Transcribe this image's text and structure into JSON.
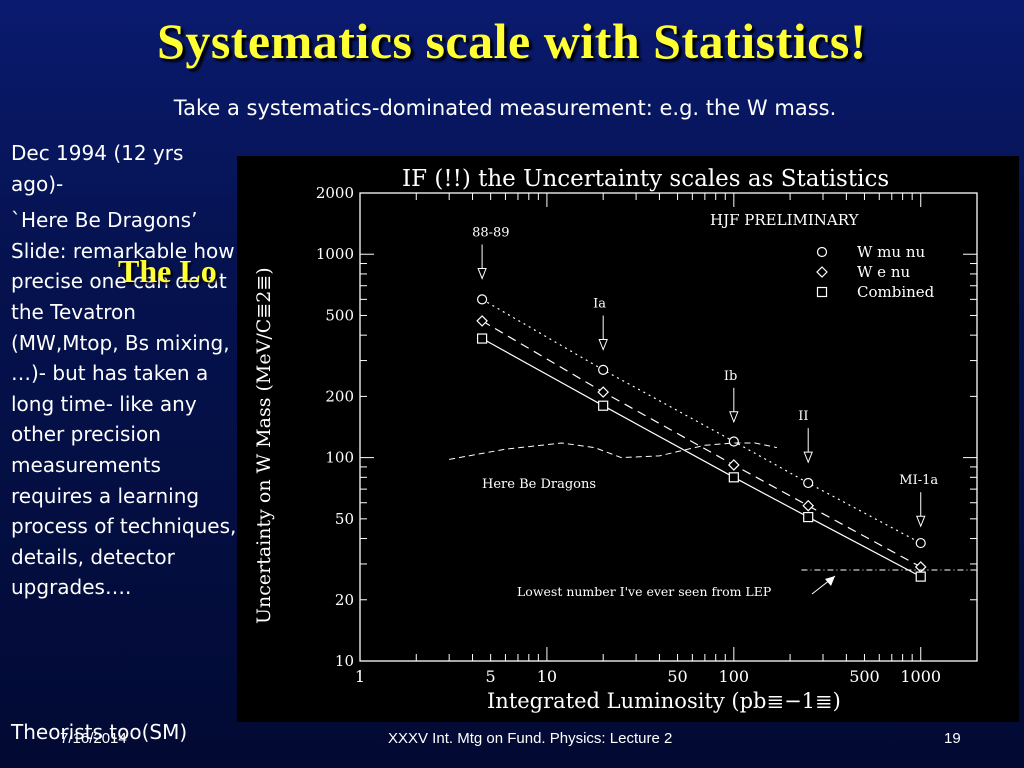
{
  "slide": {
    "title": "Systematics scale with Statistics!",
    "subtitle": "Take a systematics-dominated measurement: e.g. the W mass.",
    "left_paragraph_1": "Dec 1994 (12 yrs ago)-",
    "left_paragraph_2": "`Here Be Dragons’ Slide: remarkable how precise one can do at the Tevatron (MW,Mtop, Bs mixing, …)- but has taken a long time- like any other precision measurements requires a learning process of techniques, details, detector upgrades….",
    "left_paragraph_3": "Theorists too(SM)",
    "hidden_title_fragment": "The Lo",
    "footer_date": "7/16/2014",
    "footer_center": "XXXV Int. Mtg on Fund. Physics: Lecture 2",
    "page_number": "19"
  },
  "colors": {
    "title": "#ffff33",
    "text": "#ffffff",
    "plot_bg": "#000000",
    "slide_bg": "#0a1a6e"
  },
  "chart_data": {
    "type": "scatter",
    "title": "IF (!!) the Uncertainty scales as Statistics",
    "preliminary_label": "HJF PRELIMINARY",
    "xlabel": "Integrated Luminosity (pb≣−1≣)",
    "ylabel": "Uncertainty on W Mass (MeV/C≣2≣)",
    "xscale": "log",
    "yscale": "log",
    "xlim": [
      1,
      2000
    ],
    "ylim": [
      10,
      2000
    ],
    "x_ticks": [
      1,
      5,
      10,
      50,
      100,
      500,
      1000
    ],
    "y_ticks": [
      10,
      20,
      50,
      100,
      200,
      500,
      1000,
      2000
    ],
    "legend_position": "top-right",
    "series": [
      {
        "name": "W mu nu",
        "marker": "circle",
        "line": "dotted",
        "x": [
          4.5,
          20,
          100,
          250,
          1000
        ],
        "y": [
          600,
          270,
          120,
          75,
          38
        ]
      },
      {
        "name": "W e nu",
        "marker": "diamond",
        "line": "dashed",
        "x": [
          4.5,
          20,
          100,
          250,
          1000
        ],
        "y": [
          470,
          210,
          92,
          58,
          29
        ]
      },
      {
        "name": "Combined",
        "marker": "square",
        "line": "solid",
        "x": [
          4.5,
          20,
          100,
          250,
          1000
        ],
        "y": [
          385,
          180,
          80,
          51,
          26
        ]
      }
    ],
    "dragons_curve": {
      "x": [
        3,
        6,
        12,
        18,
        25,
        40,
        70,
        100,
        130,
        170
      ],
      "y": [
        98,
        110,
        118,
        112,
        100,
        102,
        115,
        118,
        118,
        112
      ]
    },
    "lep_line": {
      "y": 28,
      "x": [
        230,
        2000
      ]
    },
    "annotations": [
      {
        "text": "88-89",
        "x": 4.5,
        "arrow_y": 760
      },
      {
        "text": "Ia",
        "x": 20,
        "arrow_y": 340
      },
      {
        "text": "Ib",
        "x": 100,
        "arrow_y": 150
      },
      {
        "text": "II",
        "x": 250,
        "arrow_y": 95
      },
      {
        "text": "MI-1a",
        "x": 1000,
        "arrow_y": 46
      }
    ],
    "dragons_label": "Here Be Dragons",
    "lep_label": "Lowest number I've ever seen from LEP"
  }
}
